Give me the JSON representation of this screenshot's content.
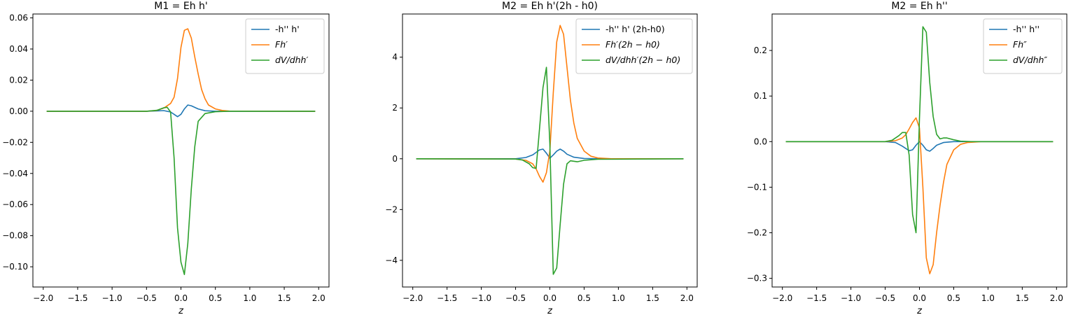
{
  "colors": {
    "c0": "#1f77b4",
    "c1": "#ff7f0e",
    "c2": "#2ca02c"
  },
  "chart_data": [
    {
      "type": "line",
      "title": "M1 = Eh h'",
      "xlabel": "z",
      "ylabel": "",
      "xlim": [
        -2.15,
        2.15
      ],
      "ylim": [
        -0.113,
        0.0625
      ],
      "xticks": [
        -2.0,
        -1.5,
        -1.0,
        -0.5,
        0.0,
        0.5,
        1.0,
        1.5,
        2.0
      ],
      "xtick_labels": [
        "−2.0",
        "−1.5",
        "−1.0",
        "−0.5",
        "0.0",
        "0.5",
        "1.0",
        "1.5",
        "2.0"
      ],
      "yticks": [
        0.06,
        0.04,
        0.02,
        0.0,
        -0.02,
        -0.04,
        -0.06,
        -0.08,
        -0.1
      ],
      "ytick_labels": [
        "0.06",
        "0.04",
        "0.02",
        "0.00",
        "−0.02",
        "−0.04",
        "−0.06",
        "−0.08",
        "−0.10"
      ],
      "legend_position": "top-right",
      "series": [
        {
          "name": "-h'' h'",
          "math": false,
          "color": "#1f77b4",
          "x": [
            -1.95,
            -0.5,
            -0.35,
            -0.25,
            -0.15,
            -0.1,
            -0.05,
            0.0,
            0.05,
            0.1,
            0.15,
            0.25,
            0.35,
            0.5,
            0.7,
            1.95
          ],
          "y": [
            0,
            0,
            0.0002,
            0.0004,
            -0.0005,
            -0.002,
            -0.0035,
            -0.002,
            0.0015,
            0.004,
            0.0035,
            0.0015,
            0.0003,
            0,
            0,
            0
          ]
        },
        {
          "name": "Fh′",
          "math": true,
          "color": "#ff7f0e",
          "x": [
            -1.95,
            -0.5,
            -0.35,
            -0.25,
            -0.15,
            -0.1,
            -0.05,
            0.0,
            0.05,
            0.1,
            0.15,
            0.2,
            0.25,
            0.3,
            0.35,
            0.4,
            0.5,
            0.6,
            0.7,
            1.95
          ],
          "y": [
            0,
            0,
            0.0005,
            0.002,
            0.005,
            0.009,
            0.021,
            0.041,
            0.052,
            0.053,
            0.047,
            0.035,
            0.024,
            0.014,
            0.008,
            0.004,
            0.0015,
            0.0005,
            0.0001,
            0
          ]
        },
        {
          "name": "dV/dhh′",
          "math": true,
          "color": "#2ca02c",
          "x": [
            -1.95,
            -0.5,
            -0.35,
            -0.25,
            -0.2,
            -0.15,
            -0.1,
            -0.05,
            0.0,
            0.05,
            0.1,
            0.15,
            0.2,
            0.25,
            0.35,
            0.5,
            0.7,
            1.95
          ],
          "y": [
            0,
            0,
            0.0006,
            0.0022,
            0.0025,
            -0.0005,
            -0.03,
            -0.075,
            -0.097,
            -0.105,
            -0.085,
            -0.05,
            -0.023,
            -0.0065,
            -0.0015,
            -0.0003,
            0,
            0
          ]
        }
      ]
    },
    {
      "type": "line",
      "title": "M2 = Eh h'(2h - h0)",
      "xlabel": "z",
      "ylabel": "",
      "xlim": [
        -2.15,
        2.15
      ],
      "ylim": [
        -5.05,
        5.7
      ],
      "xticks": [
        -2.0,
        -1.5,
        -1.0,
        -0.5,
        0.0,
        0.5,
        1.0,
        1.5,
        2.0
      ],
      "xtick_labels": [
        "−2.0",
        "−1.5",
        "−1.0",
        "−0.5",
        "0.0",
        "0.5",
        "1.0",
        "1.5",
        "2.0"
      ],
      "yticks": [
        4,
        2,
        0,
        -2,
        -4
      ],
      "ytick_labels": [
        "4",
        "2",
        "0",
        "−2",
        "−4"
      ],
      "legend_position": "top-right",
      "series": [
        {
          "name": "-h'' h' (2h-h0)",
          "math": false,
          "color": "#1f77b4",
          "x": [
            -1.95,
            -0.5,
            -0.35,
            -0.25,
            -0.15,
            -0.1,
            -0.05,
            0.0,
            0.05,
            0.1,
            0.15,
            0.2,
            0.25,
            0.35,
            0.5,
            0.7,
            1.95
          ],
          "y": [
            0,
            0,
            0.05,
            0.15,
            0.35,
            0.38,
            0.22,
            0.02,
            0.15,
            0.3,
            0.38,
            0.3,
            0.18,
            0.06,
            0.01,
            0,
            0
          ]
        },
        {
          "name": "Fh′(2h − h0)",
          "math": true,
          "color": "#ff7f0e",
          "x": [
            -1.95,
            -0.5,
            -0.35,
            -0.25,
            -0.2,
            -0.15,
            -0.1,
            -0.05,
            0.0,
            0.05,
            0.1,
            0.15,
            0.2,
            0.25,
            0.3,
            0.35,
            0.4,
            0.5,
            0.6,
            0.7,
            0.9,
            1.95
          ],
          "y": [
            0,
            -0.01,
            -0.06,
            -0.2,
            -0.4,
            -0.7,
            -0.92,
            -0.55,
            0.3,
            2.6,
            4.6,
            5.25,
            4.9,
            3.6,
            2.3,
            1.4,
            0.8,
            0.3,
            0.1,
            0.03,
            0,
            0
          ]
        },
        {
          "name": "dV/dhh′(2h − h0)",
          "math": true,
          "color": "#2ca02c",
          "x": [
            -1.95,
            -0.5,
            -0.4,
            -0.3,
            -0.25,
            -0.2,
            -0.15,
            -0.1,
            -0.05,
            0.0,
            0.05,
            0.1,
            0.15,
            0.2,
            0.25,
            0.3,
            0.4,
            0.5,
            0.7,
            1.95
          ],
          "y": [
            0,
            -0.01,
            -0.05,
            -0.2,
            -0.35,
            -0.38,
            1.2,
            2.8,
            3.6,
            0.6,
            -4.55,
            -4.3,
            -2.6,
            -1.0,
            -0.2,
            -0.08,
            -0.12,
            -0.06,
            -0.02,
            0
          ]
        }
      ]
    },
    {
      "type": "line",
      "title": "M2 = Eh h''",
      "xlabel": "z",
      "ylabel": "",
      "xlim": [
        -2.15,
        2.15
      ],
      "ylim": [
        -0.319,
        0.28
      ],
      "xticks": [
        -2.0,
        -1.5,
        -1.0,
        -0.5,
        0.0,
        0.5,
        1.0,
        1.5,
        2.0
      ],
      "xtick_labels": [
        "−2.0",
        "−1.5",
        "−1.0",
        "−0.5",
        "0.0",
        "0.5",
        "1.0",
        "1.5",
        "2.0"
      ],
      "yticks": [
        0.2,
        0.1,
        0.0,
        -0.1,
        -0.2,
        -0.3
      ],
      "ytick_labels": [
        "0.2",
        "0.1",
        "0.0",
        "−0.1",
        "−0.2",
        "−0.3"
      ],
      "legend_position": "top-right",
      "series": [
        {
          "name": "-h'' h''",
          "math": false,
          "color": "#1f77b4",
          "x": [
            -1.95,
            -0.5,
            -0.35,
            -0.25,
            -0.15,
            -0.1,
            -0.05,
            0.0,
            0.05,
            0.1,
            0.15,
            0.2,
            0.25,
            0.35,
            0.5,
            0.7,
            1.95
          ],
          "y": [
            0,
            0,
            -0.002,
            -0.01,
            -0.02,
            -0.018,
            -0.008,
            0.0,
            -0.008,
            -0.018,
            -0.021,
            -0.015,
            -0.008,
            -0.002,
            0,
            0,
            0
          ]
        },
        {
          "name": "Fh″",
          "math": true,
          "color": "#ff7f0e",
          "x": [
            -1.95,
            -0.5,
            -0.35,
            -0.25,
            -0.2,
            -0.15,
            -0.1,
            -0.05,
            0.0,
            0.05,
            0.1,
            0.15,
            0.2,
            0.25,
            0.3,
            0.35,
            0.4,
            0.5,
            0.6,
            0.7,
            0.9,
            1.95
          ],
          "y": [
            0,
            0,
            0.002,
            0.008,
            0.015,
            0.028,
            0.042,
            0.052,
            0.03,
            -0.1,
            -0.255,
            -0.29,
            -0.27,
            -0.2,
            -0.14,
            -0.09,
            -0.05,
            -0.018,
            -0.006,
            -0.002,
            0,
            0
          ]
        },
        {
          "name": "dV/dhh″",
          "math": true,
          "color": "#2ca02c",
          "x": [
            -1.95,
            -0.5,
            -0.4,
            -0.3,
            -0.25,
            -0.2,
            -0.15,
            -0.1,
            -0.05,
            0.0,
            0.05,
            0.1,
            0.15,
            0.2,
            0.25,
            0.3,
            0.35,
            0.4,
            0.5,
            0.6,
            0.75,
            1.95
          ],
          "y": [
            0,
            0,
            0.003,
            0.013,
            0.02,
            0.02,
            -0.03,
            -0.16,
            -0.2,
            0.05,
            0.252,
            0.24,
            0.13,
            0.055,
            0.016,
            0.006,
            0.008,
            0.008,
            0.004,
            0.001,
            0,
            0
          ]
        }
      ]
    }
  ]
}
